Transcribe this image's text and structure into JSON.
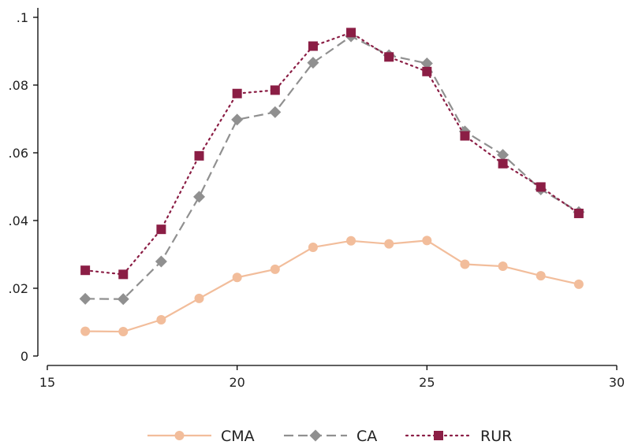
{
  "chart_data": {
    "type": "line",
    "title": "",
    "xlabel": "",
    "ylabel": "",
    "xlim": [
      15,
      30
    ],
    "ylim": [
      0,
      0.1
    ],
    "x_ticks": [
      15,
      20,
      25,
      30
    ],
    "x_tick_labels": [
      "15",
      "20",
      "25",
      "30"
    ],
    "y_ticks": [
      0,
      0.02,
      0.04,
      0.06,
      0.08,
      0.1
    ],
    "y_tick_labels": [
      "0",
      ".02",
      ".04",
      ".06",
      ".08",
      ".1"
    ],
    "grid": false,
    "legend_position": "bottom",
    "x": [
      16,
      17,
      18,
      19,
      20,
      21,
      22,
      23,
      24,
      25,
      26,
      27,
      28,
      29
    ],
    "series": [
      {
        "name": "CMA",
        "color": "#f2bd9b",
        "line_style": "solid",
        "marker": "circle",
        "values": [
          0.0073,
          0.0072,
          0.0107,
          0.017,
          0.0232,
          0.0256,
          0.0321,
          0.034,
          0.0331,
          0.0341,
          0.0271,
          0.0265,
          0.0237,
          0.0212
        ]
      },
      {
        "name": "CA",
        "color": "#909090",
        "line_style": "dashed",
        "marker": "diamond",
        "values": [
          0.0169,
          0.0168,
          0.0279,
          0.047,
          0.0698,
          0.072,
          0.0866,
          0.0944,
          0.0888,
          0.0864,
          0.0663,
          0.0594,
          0.0492,
          0.0425
        ]
      },
      {
        "name": "RUR",
        "color": "#8b1e45",
        "line_style": "dotted",
        "marker": "square",
        "values": [
          0.0253,
          0.0241,
          0.0374,
          0.0591,
          0.0775,
          0.0785,
          0.0915,
          0.0955,
          0.0883,
          0.084,
          0.065,
          0.0568,
          0.0499,
          0.0421
        ]
      }
    ]
  }
}
